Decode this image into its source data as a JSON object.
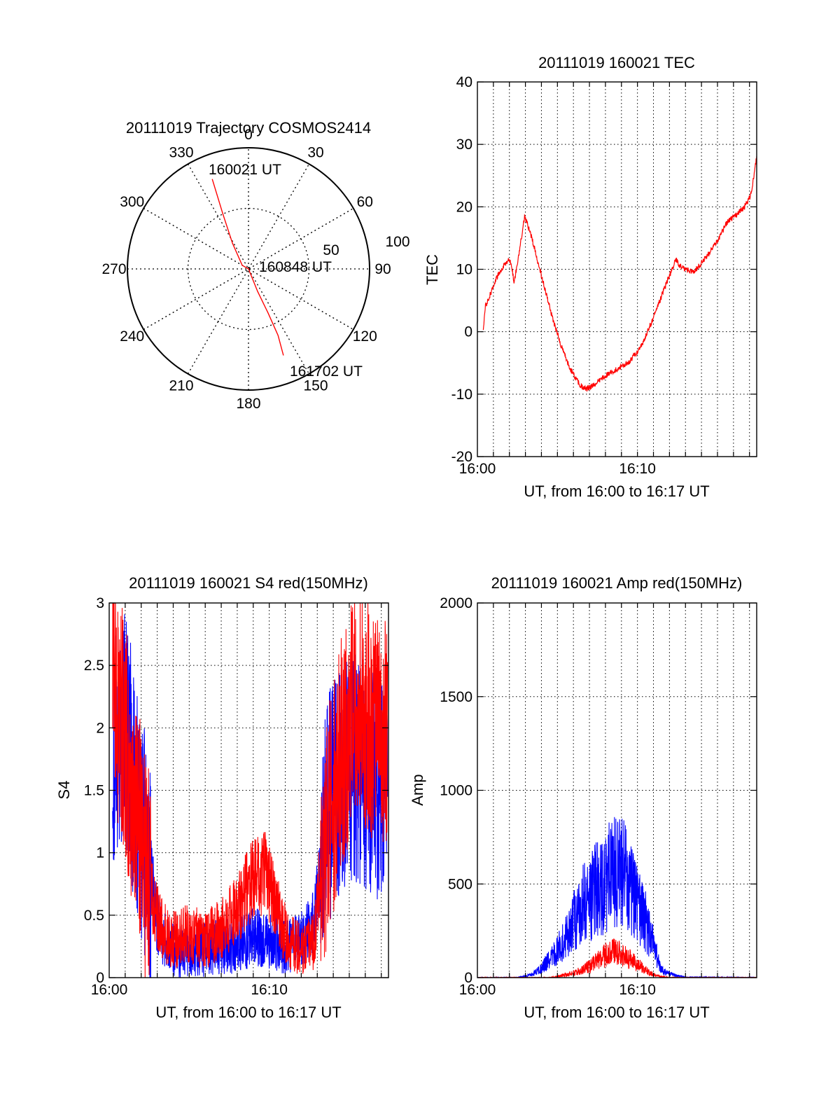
{
  "chart_data": [
    {
      "type": "polar",
      "title": "20111019 Trajectory COSMOS2414",
      "angle_labels": [
        "0",
        "30",
        "60",
        "90",
        "120",
        "150",
        "180",
        "210",
        "240",
        "270",
        "300",
        "330"
      ],
      "radial_labels": [
        "50",
        "100"
      ],
      "rlim": [
        0,
        100
      ],
      "grid": true,
      "annotations": [
        "160021 UT",
        "160848 UT",
        "161702 UT"
      ],
      "series": [
        {
          "color": "#ff0000",
          "points": [
            {
              "az": 338,
              "r": 80,
              "time": "160021 UT"
            },
            {
              "az": 335,
              "r": 50
            },
            {
              "az": 328,
              "r": 25
            },
            {
              "az": 300,
              "r": 6
            },
            {
              "az": 170,
              "r": 0,
              "time": "160848 UT"
            },
            {
              "az": 158,
              "r": 20
            },
            {
              "az": 156,
              "r": 40
            },
            {
              "az": 156,
              "r": 60
            },
            {
              "az": 158,
              "r": 77,
              "time": "161702 UT"
            }
          ]
        }
      ]
    },
    {
      "type": "line",
      "title": "20111019 160021 TEC",
      "xlabel": "UT, from 16:00 to 16:17 UT",
      "ylabel": "TEC",
      "xticks": [
        "16:00",
        "16:10"
      ],
      "xticks_min": [
        0,
        10
      ],
      "xlim_min": [
        0,
        17.45
      ],
      "ylim": [
        -20,
        40
      ],
      "yticks": [
        -20,
        -10,
        0,
        10,
        20,
        30,
        40
      ],
      "grid": true,
      "series": [
        {
          "color": "#ff0000",
          "points": [
            [
              0.35,
              0
            ],
            [
              0.5,
              4
            ],
            [
              0.8,
              6
            ],
            [
              1.1,
              8
            ],
            [
              1.5,
              10
            ],
            [
              1.9,
              11.5
            ],
            [
              2.1,
              11
            ],
            [
              2.3,
              8
            ],
            [
              2.5,
              11
            ],
            [
              2.75,
              15
            ],
            [
              2.95,
              18.5
            ],
            [
              3.4,
              15
            ],
            [
              4.0,
              9
            ],
            [
              4.6,
              3
            ],
            [
              5.2,
              -2
            ],
            [
              5.8,
              -6
            ],
            [
              6.4,
              -8.5
            ],
            [
              6.8,
              -9.2
            ],
            [
              7.3,
              -8.5
            ],
            [
              8.0,
              -7
            ],
            [
              8.7,
              -6
            ],
            [
              9.5,
              -4.8
            ],
            [
              10.2,
              -2.5
            ],
            [
              10.8,
              1
            ],
            [
              11.4,
              5
            ],
            [
              12.0,
              9
            ],
            [
              12.4,
              11.6
            ],
            [
              12.7,
              10.5
            ],
            [
              13.0,
              10
            ],
            [
              13.5,
              9.5
            ],
            [
              14.0,
              11
            ],
            [
              14.6,
              13
            ],
            [
              15.1,
              15
            ],
            [
              15.6,
              17.5
            ],
            [
              16.1,
              18.5
            ],
            [
              16.7,
              20
            ],
            [
              17.1,
              22
            ],
            [
              17.45,
              28
            ]
          ]
        }
      ]
    },
    {
      "type": "line",
      "title": "20111019 160021 S4 red(150MHz)",
      "xlabel": "UT, from 16:00 to 16:17 UT",
      "ylabel": "S4",
      "xticks": [
        "16:00",
        "16:10"
      ],
      "xticks_min": [
        0,
        10
      ],
      "xlim_min": [
        0,
        17.45
      ],
      "ylim": [
        0,
        3
      ],
      "yticks": [
        0,
        0.5,
        1,
        1.5,
        2,
        2.5,
        3
      ],
      "ytick_labels": [
        "0",
        "0.5",
        "1",
        "1.5",
        "2",
        "2.5",
        "3"
      ],
      "grid": true,
      "series": [
        {
          "color": "#0000ff",
          "points": [
            [
              0.2,
              1.8
            ],
            [
              1.0,
              2.0
            ],
            [
              2.0,
              1.2
            ],
            [
              2.5,
              0.9
            ],
            [
              3.0,
              0.45
            ],
            [
              3.5,
              0.3
            ],
            [
              4.0,
              0.22
            ],
            [
              5.0,
              0.2
            ],
            [
              6.0,
              0.22
            ],
            [
              7.0,
              0.25
            ],
            [
              8.0,
              0.25
            ],
            [
              9.0,
              0.32
            ],
            [
              10.0,
              0.3
            ],
            [
              11.0,
              0.25
            ],
            [
              12.0,
              0.3
            ],
            [
              12.8,
              0.45
            ],
            [
              13.3,
              1.0
            ],
            [
              13.8,
              1.4
            ],
            [
              14.5,
              1.6
            ],
            [
              15.5,
              1.7
            ],
            [
              16.5,
              1.6
            ],
            [
              17.4,
              1.5
            ]
          ]
        },
        {
          "color": "#ff0000",
          "points": [
            [
              0.2,
              2.4
            ],
            [
              1.0,
              1.9
            ],
            [
              2.0,
              1.1
            ],
            [
              2.5,
              0.7
            ],
            [
              3.0,
              0.5
            ],
            [
              3.5,
              0.35
            ],
            [
              4.0,
              0.3
            ],
            [
              5.0,
              0.35
            ],
            [
              6.0,
              0.3
            ],
            [
              7.0,
              0.4
            ],
            [
              8.0,
              0.55
            ],
            [
              9.0,
              0.8
            ],
            [
              9.7,
              0.85
            ],
            [
              10.2,
              0.65
            ],
            [
              11.0,
              0.35
            ],
            [
              12.0,
              0.2
            ],
            [
              12.8,
              0.3
            ],
            [
              13.3,
              1.0
            ],
            [
              13.8,
              1.3
            ],
            [
              14.5,
              1.8
            ],
            [
              15.5,
              2.2
            ],
            [
              16.5,
              2.0
            ],
            [
              17.4,
              1.9
            ]
          ]
        }
      ]
    },
    {
      "type": "line",
      "title": "20111019 160021 Amp red(150MHz)",
      "xlabel": "UT, from 16:00 to 16:17 UT",
      "ylabel": "Amp",
      "xticks": [
        "16:00",
        "16:10"
      ],
      "xticks_min": [
        0,
        10
      ],
      "xlim_min": [
        0,
        17.45
      ],
      "ylim": [
        0,
        2000
      ],
      "yticks": [
        0,
        500,
        1000,
        1500,
        2000
      ],
      "grid": true,
      "series": [
        {
          "color": "#0000ff",
          "points": [
            [
              0,
              0
            ],
            [
              2.5,
              0
            ],
            [
              3.0,
              8
            ],
            [
              3.5,
              20
            ],
            [
              4.0,
              50
            ],
            [
              4.5,
              100
            ],
            [
              5.0,
              150
            ],
            [
              5.5,
              220
            ],
            [
              6.0,
              300
            ],
            [
              6.5,
              380
            ],
            [
              7.0,
              420
            ],
            [
              7.5,
              480
            ],
            [
              8.0,
              520
            ],
            [
              8.5,
              560
            ],
            [
              9.0,
              580
            ],
            [
              9.5,
              480
            ],
            [
              10.0,
              380
            ],
            [
              10.5,
              300
            ],
            [
              11.0,
              180
            ],
            [
              11.5,
              40
            ],
            [
              12.0,
              20
            ],
            [
              12.5,
              10
            ],
            [
              13.0,
              2
            ],
            [
              17.45,
              0
            ]
          ]
        },
        {
          "color": "#ff0000",
          "points": [
            [
              0,
              0
            ],
            [
              4.5,
              0
            ],
            [
              5.0,
              5
            ],
            [
              5.5,
              15
            ],
            [
              6.0,
              25
            ],
            [
              6.5,
              40
            ],
            [
              7.0,
              60
            ],
            [
              7.5,
              90
            ],
            [
              8.0,
              120
            ],
            [
              8.5,
              140
            ],
            [
              9.0,
              120
            ],
            [
              9.5,
              100
            ],
            [
              10.0,
              70
            ],
            [
              10.5,
              40
            ],
            [
              11.0,
              15
            ],
            [
              11.5,
              5
            ],
            [
              12.0,
              0
            ],
            [
              17.45,
              0
            ]
          ]
        }
      ]
    }
  ]
}
